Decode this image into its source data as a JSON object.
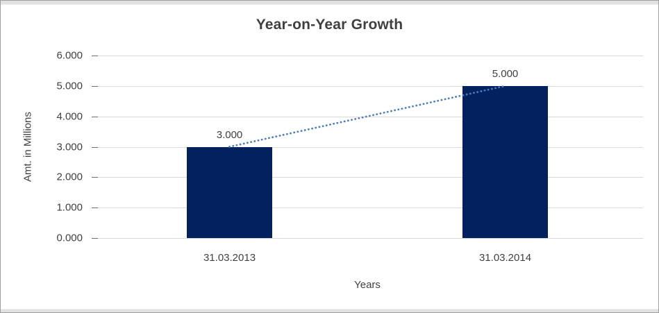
{
  "chart_data": {
    "type": "bar",
    "title": "Year-on-Year Growth",
    "xlabel": "Years",
    "ylabel": "Amt. in Millions",
    "categories": [
      "31.03.2013",
      "31.03.2014"
    ],
    "series": [
      {
        "values": [
          3.0,
          5.0
        ],
        "labels": [
          "3.000",
          "5.000"
        ]
      }
    ],
    "yticks": [
      {
        "value": 0,
        "label": "0.000"
      },
      {
        "value": 1,
        "label": "1.000"
      },
      {
        "value": 2,
        "label": "2.000"
      },
      {
        "value": 3,
        "label": "3.000"
      },
      {
        "value": 4,
        "label": "4.000"
      },
      {
        "value": 5,
        "label": "5.000"
      },
      {
        "value": 6,
        "label": "6.000"
      }
    ],
    "ylim": [
      0,
      6
    ],
    "grid": "horizontal",
    "legend": "none",
    "trendline": {
      "style": "dotted",
      "connects": [
        3.0,
        5.0
      ]
    }
  },
  "colors": {
    "bar": "#02215e",
    "trend": "#4a7ebf",
    "gridline": "#d9d9d9",
    "tick": "#6e6e6e",
    "text": "#404040",
    "title": "#3f3f3f",
    "frame_border": "#9e9e9e",
    "frame_strip": "#e1e1e1"
  }
}
